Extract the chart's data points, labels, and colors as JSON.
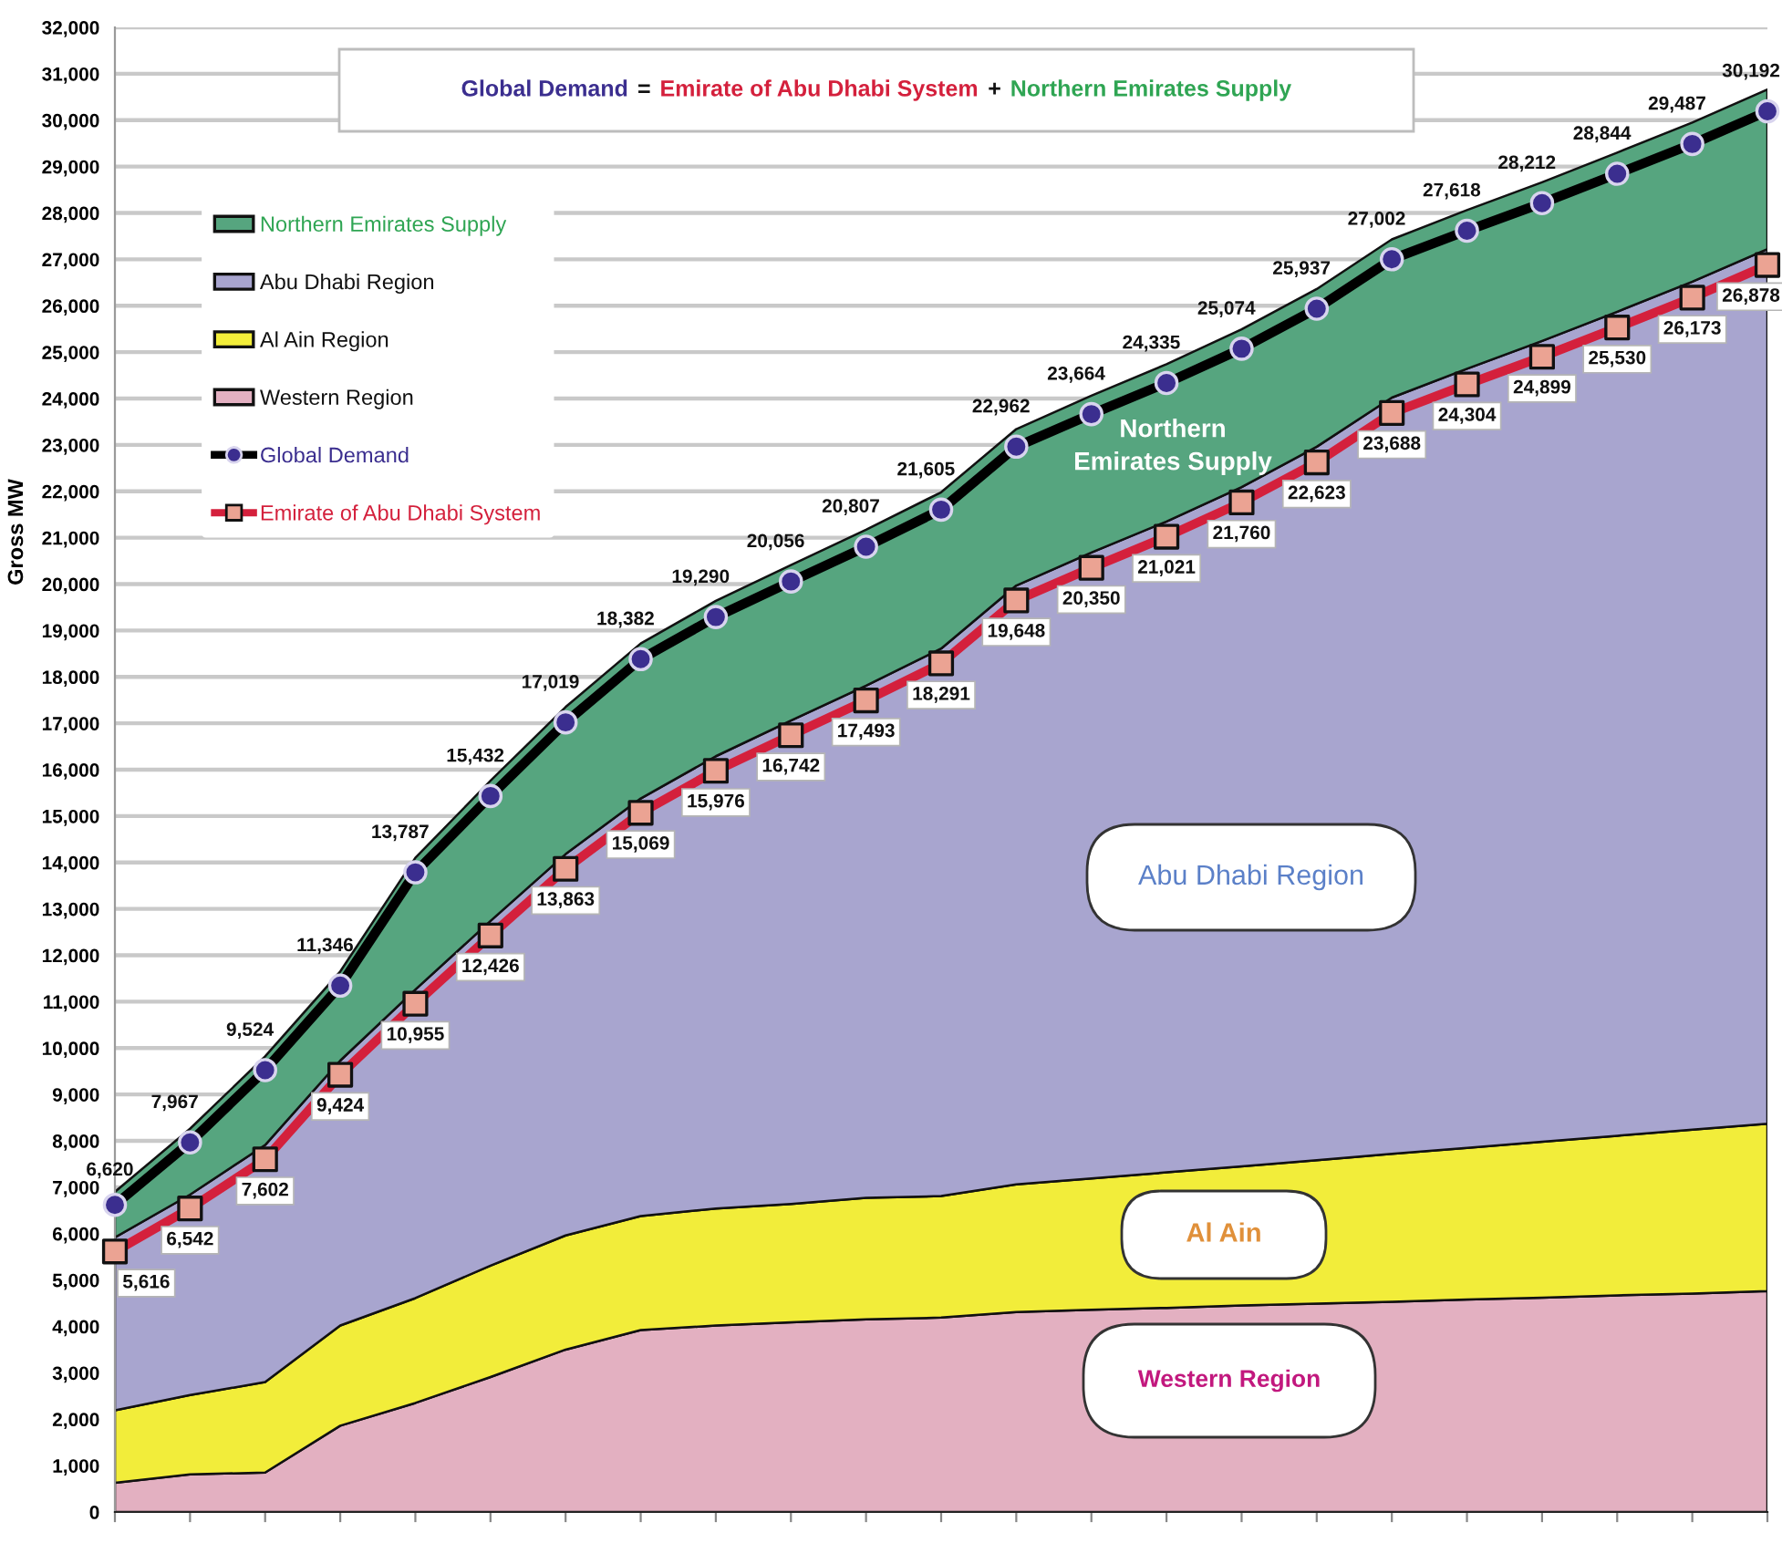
{
  "chart_data": {
    "type": "area",
    "stacked": true,
    "ylabel": "Gross MW",
    "categories": [
      null,
      null,
      null,
      null,
      null,
      null,
      null,
      null,
      null,
      null,
      null,
      null,
      null,
      null,
      null,
      null,
      null,
      null,
      null,
      null,
      null,
      null,
      null
    ],
    "ylim": [
      0,
      32000
    ],
    "yticks": [
      0,
      {
        "value": 1000,
        "label": "1,000"
      },
      {
        "value": 2000,
        "label": "2,000"
      },
      {
        "value": 3000,
        "label": "3,000"
      },
      {
        "value": 4000,
        "label": "4,000"
      },
      {
        "value": 5000,
        "label": "5,000"
      },
      {
        "value": 6000,
        "label": "6,000"
      },
      {
        "value": 7000,
        "label": "7,000"
      },
      {
        "value": 8000,
        "label": "8,000"
      },
      {
        "value": 9000,
        "label": "9,000"
      },
      {
        "value": 10000,
        "label": "10,000"
      },
      {
        "value": 11000,
        "label": "11,000"
      },
      {
        "value": 12000,
        "label": "12,000"
      },
      {
        "value": 13000,
        "label": "13,000"
      },
      {
        "value": 14000,
        "label": "14,000"
      },
      {
        "value": 15000,
        "label": "15,000"
      },
      {
        "value": 16000,
        "label": "16,000"
      },
      {
        "value": 17000,
        "label": "17,000"
      },
      {
        "value": 18000,
        "label": "18,000"
      },
      {
        "value": 19000,
        "label": "19,000"
      },
      {
        "value": 20000,
        "label": "20,000"
      },
      {
        "value": 21000,
        "label": "21,000"
      },
      {
        "value": 22000,
        "label": "22,000"
      },
      {
        "value": 23000,
        "label": "23,000"
      },
      {
        "value": 24000,
        "label": "24,000"
      },
      {
        "value": 25000,
        "label": "25,000"
      },
      {
        "value": 26000,
        "label": "26,000"
      },
      {
        "value": 27000,
        "label": "27,000"
      },
      {
        "value": 28000,
        "label": "28,000"
      },
      {
        "value": 29000,
        "label": "29,000"
      },
      {
        "value": 30000,
        "label": "30,000"
      },
      {
        "value": 31000,
        "label": "31,000"
      },
      {
        "value": 32000,
        "label": "32,000"
      }
    ],
    "grid": "y",
    "legend": "top left",
    "series": [
      {
        "name": "Western Region",
        "color": "#e3b0c1",
        "values": [
          630,
          810,
          850,
          1860,
          2350,
          2910,
          3500,
          3920,
          4020,
          4090,
          4150,
          4190,
          4310,
          4360,
          4400,
          4450,
          4490,
          4530,
          4580,
          4620,
          4670,
          4710,
          4760
        ]
      },
      {
        "name": "Al Ain Region",
        "color": "#f2ed3a",
        "values": [
          1560,
          1710,
          1950,
          2160,
          2260,
          2400,
          2460,
          2460,
          2520,
          2550,
          2620,
          2620,
          2750,
          2830,
          2920,
          3000,
          3090,
          3190,
          3270,
          3360,
          3440,
          3530,
          3610
        ]
      },
      {
        "name": "Abu Dhabi Region",
        "color": "#a8a5cf",
        "values": [
          3730,
          4320,
          5110,
          5710,
          6650,
          7430,
          8220,
          9000,
          9750,
          10420,
          11040,
          11800,
          12910,
          13490,
          14030,
          14640,
          15380,
          16300,
          16790,
          17260,
          17760,
          18280,
          18850
        ]
      },
      {
        "name": "Northern Emirates Supply",
        "color": "#56a57f",
        "values": [
          980,
          1420,
          1910,
          1920,
          2840,
          3020,
          3170,
          3340,
          3350,
          3350,
          3360,
          3370,
          3370,
          3380,
          3390,
          3400,
          3400,
          3410,
          3420,
          3420,
          3430,
          3430,
          3440
        ]
      },
      {
        "name": "Global Demand",
        "type": "line",
        "color": "#000000",
        "marker": "circle",
        "values": [
          6620,
          7967,
          9524,
          11346,
          13787,
          15432,
          17019,
          18382,
          19290,
          20056,
          20807,
          21605,
          22962,
          23664,
          24335,
          25074,
          25937,
          27002,
          27618,
          28212,
          28844,
          29487,
          30192
        ],
        "value_labels": [
          "6,620",
          "7,967",
          "9,524",
          "11,346",
          "13,787",
          "15,432",
          "17,019",
          "18,382",
          "19,290",
          "20,056",
          "20,807",
          "21,605",
          "22,962",
          "23,664",
          "24,335",
          "25,074",
          "25,937",
          "27,002",
          "27,618",
          "28,212",
          "28,844",
          "29,487",
          "30,192"
        ]
      },
      {
        "name": "Emirate of Abu Dhabi System",
        "type": "line",
        "color": "#d4203c",
        "marker": "square",
        "values": [
          5616,
          6542,
          7602,
          9424,
          10955,
          12426,
          13863,
          15069,
          15976,
          16742,
          17493,
          18291,
          19648,
          20350,
          21021,
          21760,
          22623,
          23688,
          24304,
          24899,
          25530,
          26173,
          26878
        ],
        "value_labels": [
          "5,616",
          "6,542",
          "7,602",
          "9,424",
          "10,955",
          "12,426",
          "13,863",
          "15,069",
          "15,976",
          "16,742",
          "17,493",
          "18,291",
          "19,648",
          "20,350",
          "21,021",
          "21,760",
          "22,623",
          "23,688",
          "24,304",
          "24,899",
          "25,530",
          "26,173",
          "26,878"
        ]
      }
    ],
    "annotations": [
      "Global Demand",
      "=",
      "Emirate of Abu Dhabi System",
      "+",
      "Northern Emirates Supply",
      "Northern\nEmirates Supply",
      "Abu Dhabi Region",
      "Al Ain",
      "Western Region"
    ]
  }
}
